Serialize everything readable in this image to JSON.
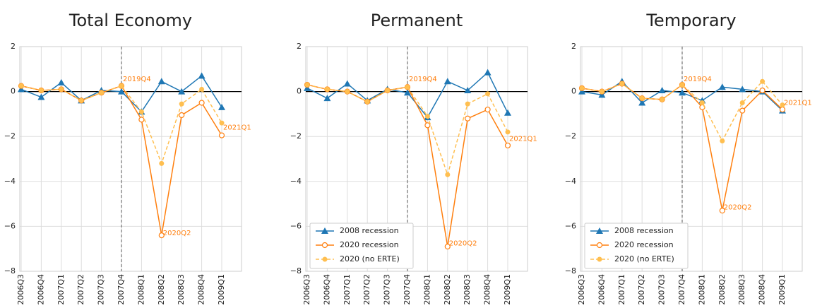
{
  "chart_data": [
    {
      "type": "line",
      "title": "Total Economy",
      "categories": [
        "2006Q3",
        "2006Q4",
        "2007Q1",
        "2007Q2",
        "2007Q3",
        "2007Q4",
        "2008Q1",
        "2008Q2",
        "2008Q3",
        "2008Q4",
        "2009Q1"
      ],
      "series": [
        {
          "name": "2008 recession",
          "color": "#1f77b4",
          "values": [
            0.1,
            -0.25,
            0.4,
            -0.4,
            0.05,
            0.0,
            -0.9,
            0.45,
            0.0,
            0.7,
            -0.7
          ]
        },
        {
          "name": "2020 recession",
          "color": "#ff7f0e",
          "values": [
            0.25,
            0.05,
            0.1,
            -0.4,
            -0.05,
            0.25,
            -1.25,
            -6.4,
            -1.05,
            -0.5,
            -1.95
          ]
        },
        {
          "name": "2020 (no ERTE)",
          "color": "#ffbf50",
          "values": [
            0.25,
            0.05,
            0.1,
            -0.4,
            -0.05,
            0.25,
            -0.9,
            -3.2,
            -0.55,
            0.1,
            -1.4
          ]
        }
      ],
      "ylim": [
        -8,
        2
      ],
      "yticks": [
        {
          "value": -8,
          "label": "−8"
        },
        {
          "value": -6,
          "label": "−6"
        },
        {
          "value": -4,
          "label": "−4"
        },
        {
          "value": -2,
          "label": "−2"
        },
        0,
        2
      ],
      "grid": true,
      "legend": false,
      "vline": "2007Q4",
      "hline": 0,
      "annotations": [
        {
          "text": "2019Q4",
          "x": "2007Q4",
          "y": 0.55
        },
        {
          "text": "2020Q2",
          "x": "2008Q2",
          "y": -6.3
        },
        {
          "text": "2021Q1",
          "x": "2009Q1",
          "y": -1.6
        }
      ]
    },
    {
      "type": "line",
      "title": "Permanent",
      "categories": [
        "2006Q3",
        "2006Q4",
        "2007Q1",
        "2007Q2",
        "2007Q3",
        "2007Q4",
        "2008Q1",
        "2008Q2",
        "2008Q3",
        "2008Q4",
        "2009Q1"
      ],
      "series": [
        {
          "name": "2008 recession",
          "color": "#1f77b4",
          "values": [
            0.15,
            -0.3,
            0.35,
            -0.4,
            0.1,
            -0.05,
            -1.15,
            0.45,
            0.05,
            0.85,
            -0.95
          ]
        },
        {
          "name": "2020 recession",
          "color": "#ff7f0e",
          "values": [
            0.3,
            0.1,
            0.0,
            -0.45,
            0.05,
            0.2,
            -1.5,
            -6.9,
            -1.2,
            -0.8,
            -2.4
          ]
        },
        {
          "name": "2020 (no ERTE)",
          "color": "#ffbf50",
          "values": [
            0.3,
            0.1,
            0.0,
            -0.45,
            0.05,
            0.2,
            -1.1,
            -3.7,
            -0.55,
            -0.1,
            -1.8
          ]
        }
      ],
      "ylim": [
        -8,
        2
      ],
      "yticks": [
        {
          "value": -8,
          "label": "−8"
        },
        {
          "value": -6,
          "label": "−6"
        },
        {
          "value": -4,
          "label": "−4"
        },
        {
          "value": -2,
          "label": "−2"
        },
        0,
        2
      ],
      "grid": true,
      "legend": "lower left",
      "vline": "2007Q4",
      "hline": 0,
      "annotations": [
        {
          "text": "2019Q4",
          "x": "2007Q4",
          "y": 0.55
        },
        {
          "text": "2020Q2",
          "x": "2008Q2",
          "y": -6.75
        },
        {
          "text": "2021Q1",
          "x": "2009Q1",
          "y": -2.1
        }
      ]
    },
    {
      "type": "line",
      "title": "Temporary",
      "categories": [
        "2006Q3",
        "2006Q4",
        "2007Q1",
        "2007Q2",
        "2007Q3",
        "2007Q4",
        "2008Q1",
        "2008Q2",
        "2008Q3",
        "2008Q4",
        "2009Q1"
      ],
      "series": [
        {
          "name": "2008 recession",
          "color": "#1f77b4",
          "values": [
            0.0,
            -0.15,
            0.45,
            -0.5,
            0.05,
            -0.05,
            -0.4,
            0.2,
            0.1,
            0.0,
            -0.85
          ]
        },
        {
          "name": "2020 recession",
          "color": "#ff7f0e",
          "values": [
            0.15,
            0.0,
            0.35,
            -0.3,
            -0.35,
            0.3,
            -0.7,
            -5.3,
            -0.85,
            0.05,
            -0.8
          ]
        },
        {
          "name": "2020 (no ERTE)",
          "color": "#ffbf50",
          "values": [
            0.15,
            0.0,
            0.35,
            -0.3,
            -0.35,
            0.3,
            -0.5,
            -2.2,
            -0.5,
            0.45,
            -0.6
          ]
        }
      ],
      "ylim": [
        -8,
        2
      ],
      "yticks": [
        {
          "value": -8,
          "label": "−8"
        },
        {
          "value": -6,
          "label": "−6"
        },
        {
          "value": -4,
          "label": "−4"
        },
        {
          "value": -2,
          "label": "−2"
        },
        0,
        2
      ],
      "grid": true,
      "legend": "lower left",
      "vline": "2007Q4",
      "hline": 0,
      "annotations": [
        {
          "text": "2019Q4",
          "x": "2007Q4",
          "y": 0.55
        },
        {
          "text": "2020Q2",
          "x": "2008Q2",
          "y": -5.15
        },
        {
          "text": "2021Q1",
          "x": "2009Q1",
          "y": -0.5
        }
      ]
    }
  ]
}
